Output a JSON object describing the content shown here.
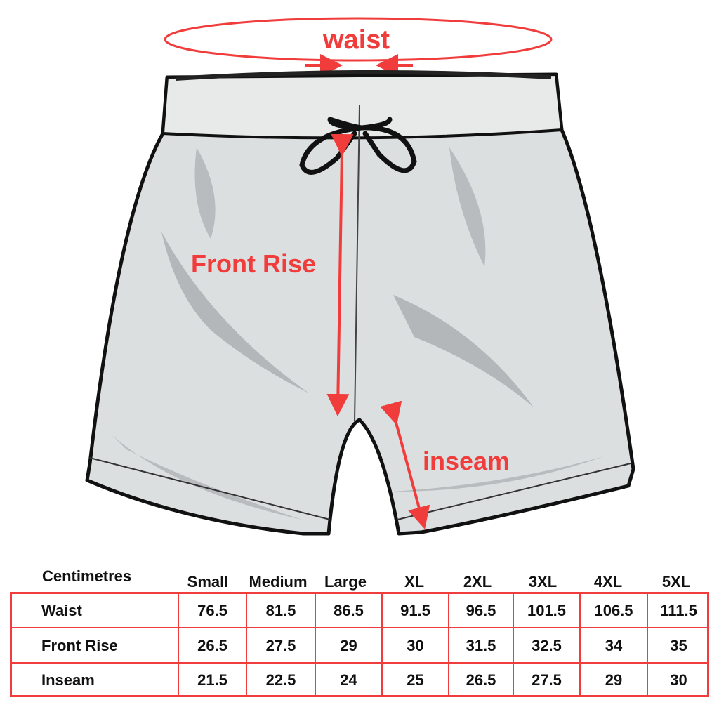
{
  "diagram": {
    "labels": {
      "waist": "waist",
      "front_rise": "Front Rise",
      "inseam": "inseam"
    },
    "accent_color": "#f13c3c",
    "garment_fill": "#dcdfe0"
  },
  "table": {
    "unit_header": "Centimetres",
    "sizes": [
      "Small",
      "Medium",
      "Large",
      "XL",
      "2XL",
      "3XL",
      "4XL",
      "5XL"
    ],
    "rows": [
      {
        "label": "Waist",
        "values": [
          "76.5",
          "81.5",
          "86.5",
          "91.5",
          "96.5",
          "101.5",
          "106.5",
          "111.5"
        ]
      },
      {
        "label": "Front Rise",
        "values": [
          "26.5",
          "27.5",
          "29",
          "30",
          "31.5",
          "32.5",
          "34",
          "35"
        ]
      },
      {
        "label": "Inseam",
        "values": [
          "21.5",
          "22.5",
          "24",
          "25",
          "26.5",
          "27.5",
          "29",
          "30"
        ]
      }
    ]
  }
}
